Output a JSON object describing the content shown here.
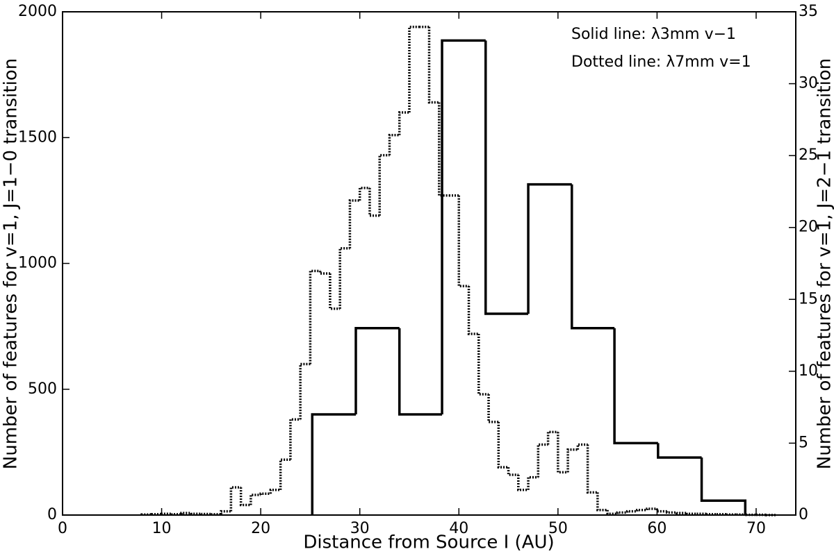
{
  "chart_data": {
    "type": "histogram",
    "xlabel": "Distance from Source I (AU)",
    "ylabel": "Number of features for v=1, J=1−0 transition",
    "y2label": "Number of features for v=1, J=2−1 transition",
    "annotations": [
      "Solid line: λ3mm v−1",
      "Dotted line: λ7mm v=1"
    ],
    "xlim": [
      0,
      74
    ],
    "xticks": [
      0,
      10,
      20,
      30,
      40,
      50,
      60,
      70
    ],
    "ylim": [
      0,
      2000
    ],
    "yticks": [
      0,
      500,
      1000,
      1500,
      2000
    ],
    "y2lim": [
      0,
      35
    ],
    "y2ticks": [
      0,
      5,
      10,
      15,
      20,
      25,
      30,
      35
    ],
    "series": [
      {
        "color": "#000000",
        "linestyle": "dotted",
        "axis": "y",
        "bins": [
          8,
          9,
          10,
          11,
          12,
          13,
          14,
          15,
          16,
          17,
          18,
          19,
          20,
          21,
          22,
          23,
          24,
          25,
          26,
          27,
          28,
          29,
          30,
          31,
          32,
          33,
          34,
          35,
          36,
          37,
          38,
          39,
          40,
          41,
          42,
          43,
          44,
          45,
          46,
          47,
          48,
          49,
          50,
          51,
          52,
          53,
          54,
          55,
          56,
          57,
          58,
          59,
          60,
          61,
          62,
          63,
          64,
          65,
          66,
          67,
          68,
          69,
          70,
          71,
          72
        ],
        "values": [
          2,
          3,
          5,
          3,
          8,
          5,
          4,
          3,
          15,
          110,
          40,
          80,
          85,
          100,
          220,
          380,
          600,
          970,
          960,
          820,
          1060,
          1250,
          1300,
          1190,
          1430,
          1510,
          1600,
          1940,
          1940,
          1640,
          1270,
          1270,
          910,
          720,
          480,
          370,
          190,
          160,
          100,
          150,
          280,
          330,
          170,
          260,
          280,
          90,
          20,
          5,
          10,
          15,
          20,
          25,
          15,
          10,
          8,
          5,
          5,
          3,
          3,
          2,
          2,
          1,
          1,
          0
        ]
      },
      {
        "color": "#000000",
        "linestyle": "solid",
        "axis": "y2",
        "bins": [
          25.2,
          29.6,
          34,
          38.3,
          42.7,
          47,
          51.4,
          55.7,
          60.1,
          64.5,
          68.9
        ],
        "values": [
          7,
          13,
          7,
          33,
          14,
          23,
          13,
          5,
          4,
          1
        ]
      }
    ]
  }
}
